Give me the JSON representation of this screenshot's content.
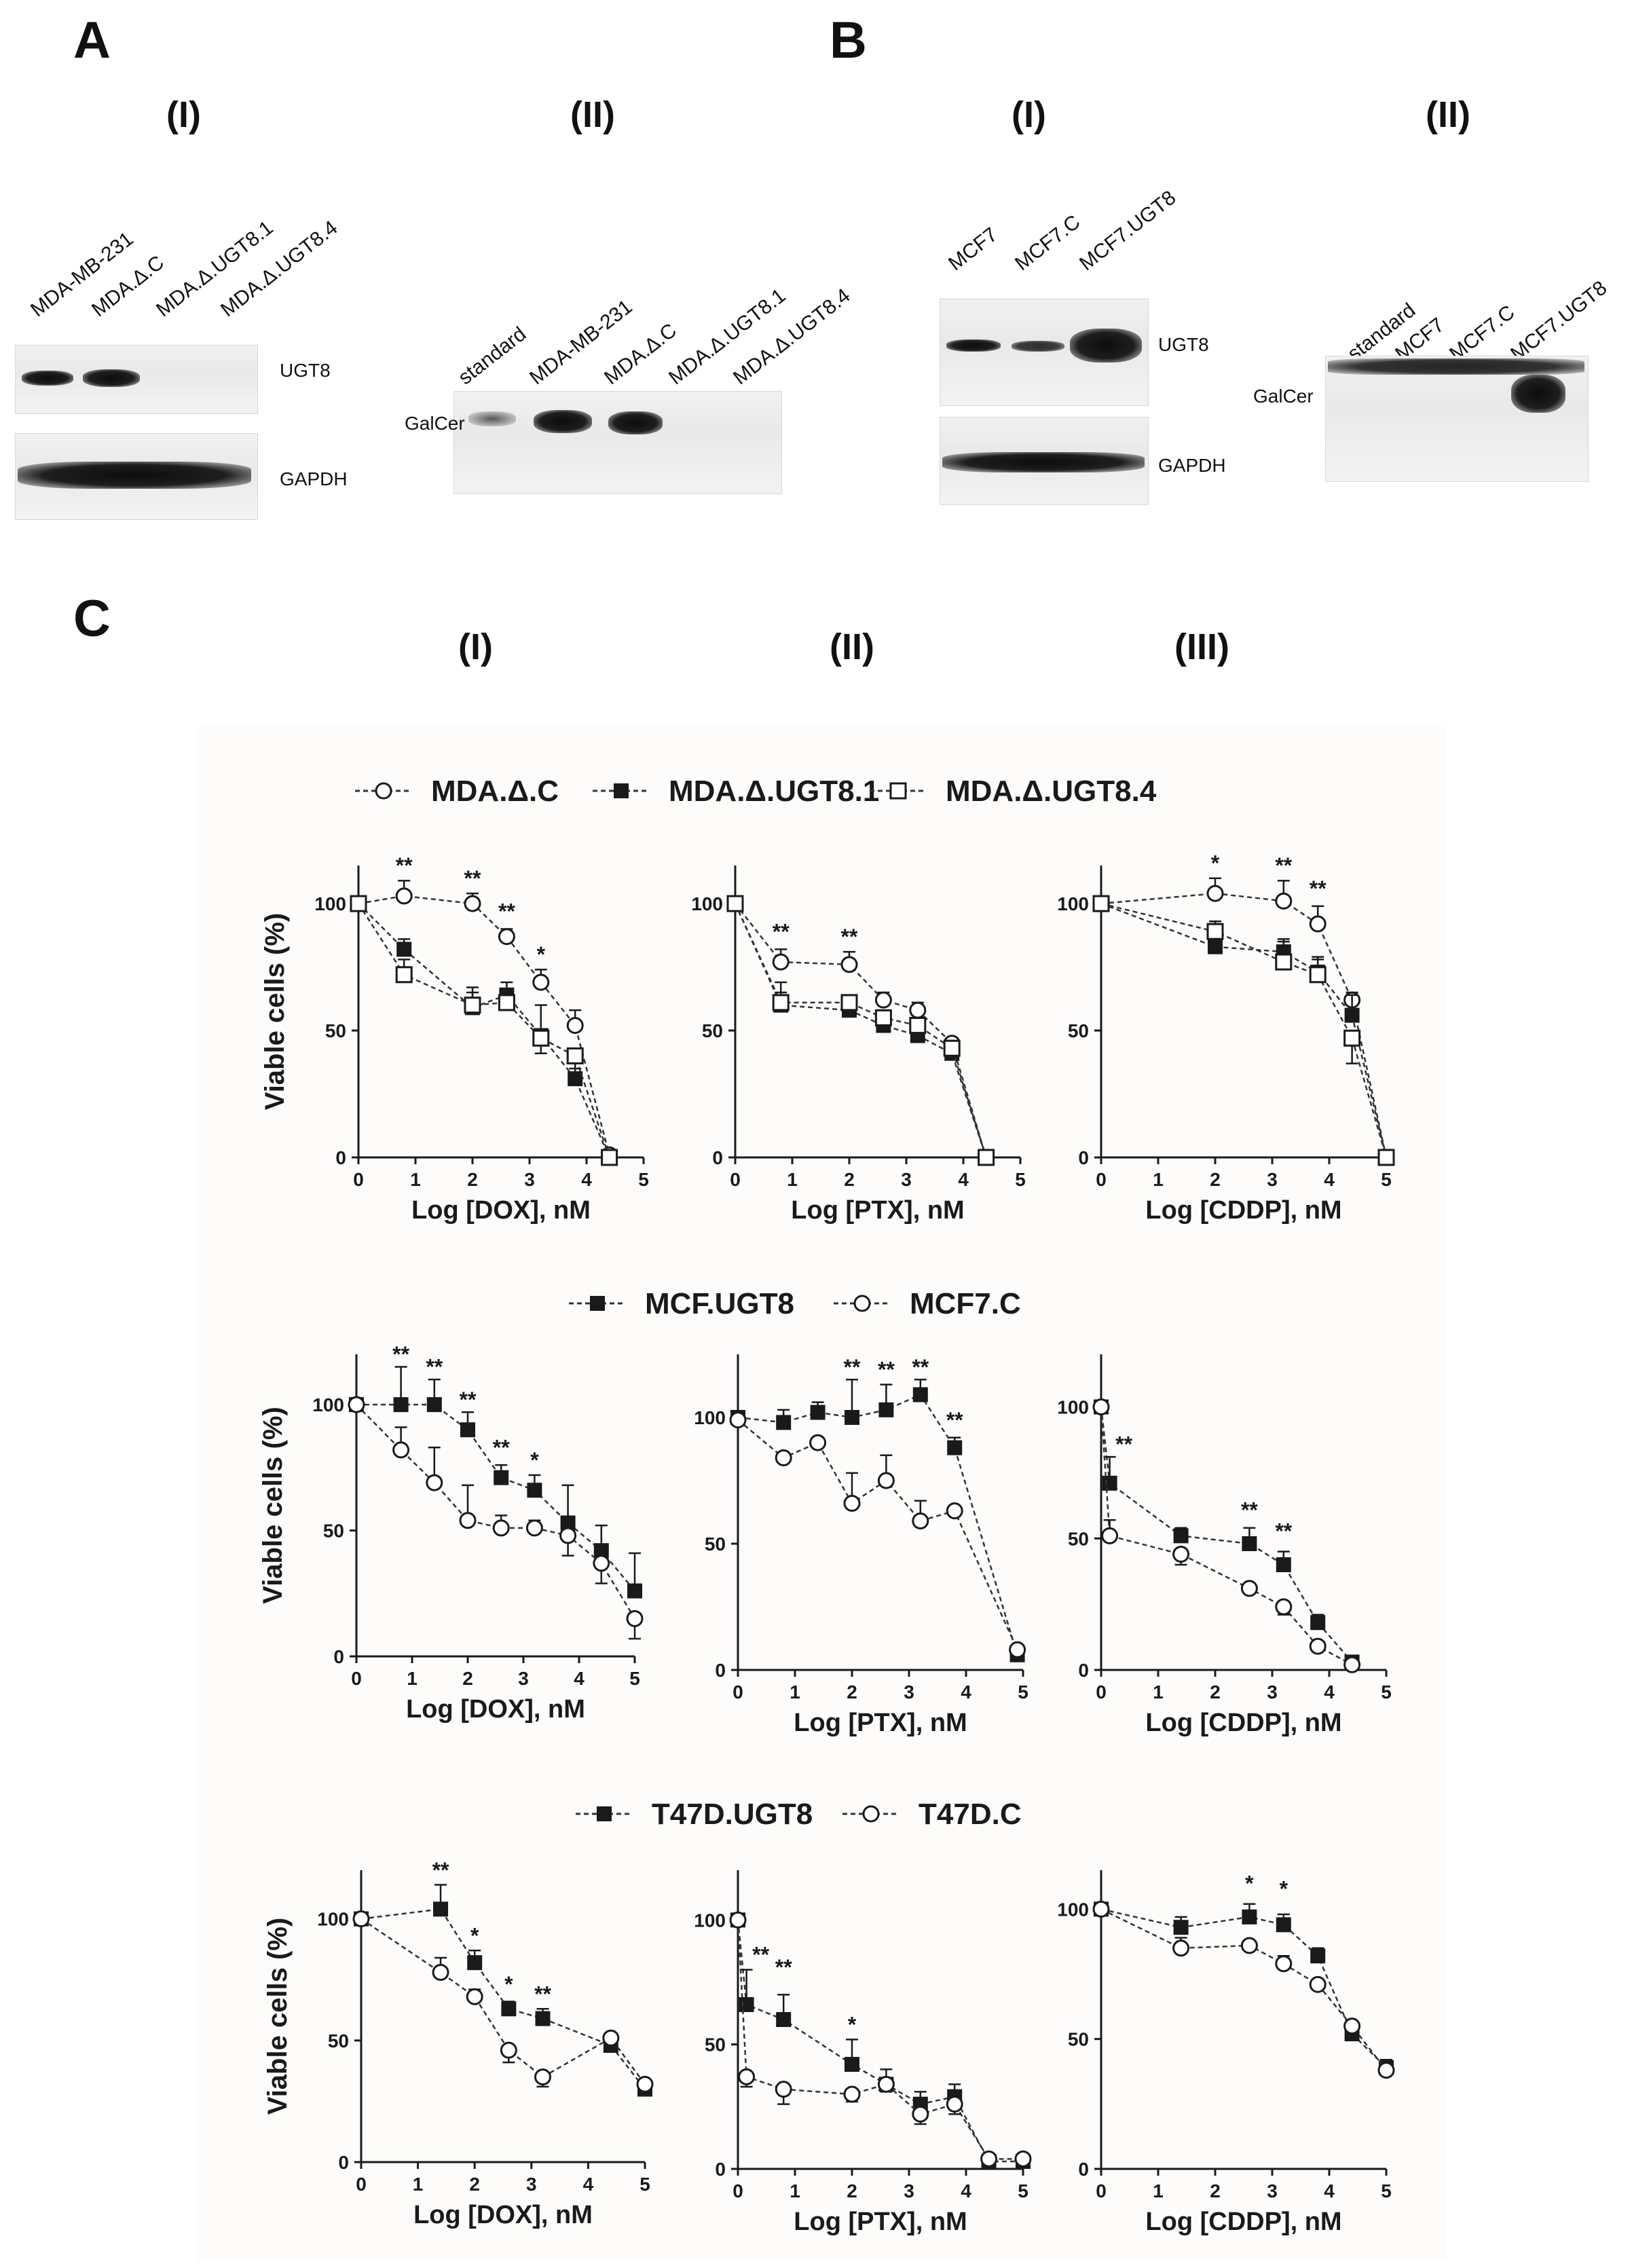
{
  "panel_labels": {
    "A": "A",
    "B": "B",
    "C": "C"
  },
  "sublabels": {
    "A_I": "(I)",
    "A_II": "(II)",
    "B_I": "(I)",
    "B_II": "(II)",
    "C_I": "(I)",
    "C_II": "(II)",
    "C_III": "(III)"
  },
  "blots": {
    "A_I": {
      "lanes": [
        "MDA-MB-231",
        "MDA.Δ.C",
        "MDA.Δ.UGT8.1",
        "MDA.Δ.UGT8.4"
      ],
      "top_label": "UGT8",
      "bottom_label": "GAPDH"
    },
    "A_II": {
      "lanes": [
        "standard",
        "MDA-MB-231",
        "MDA.Δ.C",
        "MDA.Δ.UGT8.1",
        "MDA.Δ.UGT8.4"
      ],
      "label": "GalCer"
    },
    "B_I": {
      "lanes": [
        "MCF7",
        "MCF7.C",
        "MCF7.UGT8"
      ],
      "top_label": "UGT8",
      "bottom_label": "GAPDH"
    },
    "B_II": {
      "lanes": [
        "standard",
        "MCF7",
        "MCF7.C",
        "MCF7.UGT8"
      ],
      "label": "GalCer"
    }
  },
  "legends": [
    {
      "items": [
        {
          "label": "MDA.Δ.C",
          "marker": "open-circle"
        },
        {
          "label": "MDA.Δ.UGT8.1",
          "marker": "filled-square"
        },
        {
          "label": "MDA.Δ.UGT8.4",
          "marker": "open-square"
        }
      ]
    },
    {
      "items": [
        {
          "label": "MCF.UGT8",
          "marker": "filled-square"
        },
        {
          "label": "MCF7.C",
          "marker": "open-circle"
        }
      ]
    },
    {
      "items": [
        {
          "label": "T47D.UGT8",
          "marker": "filled-square"
        },
        {
          "label": "T47D.C",
          "marker": "open-circle"
        }
      ]
    }
  ],
  "chart_data": [
    {
      "type": "line",
      "ylabel": "Viable cells (%)",
      "xlabel": "Log [DOX], nM",
      "xlim": [
        0,
        5
      ],
      "ylim": [
        0,
        115
      ],
      "xticks": [
        0,
        1,
        2,
        3,
        4,
        5
      ],
      "yticks": [
        0,
        50,
        100
      ],
      "series": [
        {
          "name": "MDA.Δ.C",
          "marker": "open-circle",
          "x": [
            0,
            0.8,
            2,
            2.6,
            3.2,
            3.8,
            4.4
          ],
          "y": [
            100,
            103,
            100,
            87,
            69,
            52,
            1
          ],
          "err": [
            0,
            6,
            4,
            3,
            5,
            6,
            2
          ]
        },
        {
          "name": "MDA.Δ.UGT8.1",
          "marker": "filled-square",
          "x": [
            0,
            0.8,
            2,
            2.6,
            3.2,
            3.8,
            4.4
          ],
          "y": [
            100,
            82,
            59,
            64,
            48,
            31,
            0
          ],
          "err": [
            0,
            4,
            8,
            5,
            12,
            9,
            2
          ]
        },
        {
          "name": "MDA.Δ.UGT8.4",
          "marker": "open-square",
          "x": [
            0,
            0.8,
            2,
            2.6,
            3.2,
            3.8,
            4.4
          ],
          "y": [
            100,
            72,
            60,
            61,
            47,
            40,
            0
          ],
          "err": [
            0,
            6,
            5,
            5,
            6,
            5,
            2
          ]
        }
      ],
      "annotations": [
        {
          "x": 0.8,
          "y": 112,
          "text": "**"
        },
        {
          "x": 2,
          "y": 107,
          "text": "**"
        },
        {
          "x": 2.6,
          "y": 94,
          "text": "**"
        },
        {
          "x": 3.2,
          "y": 77,
          "text": "*"
        }
      ]
    },
    {
      "type": "line",
      "ylabel": "",
      "xlabel": "Log [PTX], nM",
      "xlim": [
        0,
        5
      ],
      "ylim": [
        0,
        115
      ],
      "xticks": [
        0,
        1,
        2,
        3,
        4,
        5
      ],
      "yticks": [
        0,
        50,
        100
      ],
      "series": [
        {
          "name": "MDA.Δ.C",
          "marker": "open-circle",
          "x": [
            0,
            0.8,
            2,
            2.6,
            3.2,
            3.8,
            4.4
          ],
          "y": [
            100,
            77,
            76,
            62,
            58,
            45,
            0
          ],
          "err": [
            0,
            5,
            5,
            3,
            3,
            3,
            2
          ]
        },
        {
          "name": "MDA.Δ.UGT8.1",
          "marker": "filled-square",
          "x": [
            0,
            0.8,
            2,
            2.6,
            3.2,
            3.8,
            4.4
          ],
          "y": [
            100,
            60,
            58,
            52,
            48,
            41,
            0
          ],
          "err": [
            0,
            9,
            6,
            3,
            4,
            5,
            1
          ]
        },
        {
          "name": "MDA.Δ.UGT8.4",
          "marker": "open-square",
          "x": [
            0,
            0.8,
            2,
            2.6,
            3.2,
            3.8,
            4.4
          ],
          "y": [
            100,
            61,
            61,
            55,
            52,
            43,
            0
          ],
          "err": [
            0,
            4,
            3,
            3,
            3,
            3,
            1
          ]
        }
      ],
      "annotations": [
        {
          "x": 0.8,
          "y": 86,
          "text": "**"
        },
        {
          "x": 2,
          "y": 84,
          "text": "**"
        }
      ]
    },
    {
      "type": "line",
      "ylabel": "",
      "xlabel": "Log [CDDP], nM",
      "xlim": [
        0,
        5
      ],
      "ylim": [
        0,
        115
      ],
      "xticks": [
        0,
        1,
        2,
        3,
        4,
        5
      ],
      "yticks": [
        0,
        50,
        100
      ],
      "series": [
        {
          "name": "MDA.Δ.C",
          "marker": "open-circle",
          "x": [
            0,
            2,
            3.2,
            3.8,
            4.4,
            5
          ],
          "y": [
            100,
            104,
            101,
            92,
            62,
            0
          ],
          "err": [
            0,
            6,
            8,
            7,
            3,
            1
          ]
        },
        {
          "name": "MDA.Δ.UGT8.1",
          "marker": "filled-square",
          "x": [
            0,
            2,
            3.2,
            3.8,
            4.4,
            5
          ],
          "y": [
            100,
            83,
            81,
            73,
            56,
            0
          ],
          "err": [
            0,
            5,
            5,
            6,
            8,
            1
          ]
        },
        {
          "name": "MDA.Δ.UGT8.4",
          "marker": "open-square",
          "x": [
            0,
            2,
            3.2,
            3.8,
            4.4,
            5
          ],
          "y": [
            100,
            89,
            77,
            72,
            47,
            0
          ],
          "err": [
            0,
            4,
            8,
            6,
            10,
            1
          ]
        }
      ],
      "annotations": [
        {
          "x": 2,
          "y": 113,
          "text": "*"
        },
        {
          "x": 3.2,
          "y": 112,
          "text": "**"
        },
        {
          "x": 3.8,
          "y": 103,
          "text": "**"
        }
      ]
    },
    {
      "type": "line",
      "ylabel": "Viable cells (%)",
      "xlabel": "Log [DOX], nM",
      "xlim": [
        0,
        5
      ],
      "ylim": [
        0,
        120
      ],
      "xticks": [
        0,
        1,
        2,
        3,
        4,
        5
      ],
      "yticks": [
        0,
        50,
        100
      ],
      "series": [
        {
          "name": "MCF.UGT8",
          "marker": "filled-square",
          "x": [
            0,
            0.8,
            1.4,
            2,
            2.6,
            3.2,
            3.8,
            4.4,
            5
          ],
          "y": [
            100,
            100,
            100,
            90,
            71,
            66,
            53,
            42,
            26
          ],
          "err": [
            0,
            15,
            10,
            7,
            5,
            6,
            15,
            10,
            15
          ]
        },
        {
          "name": "MCF7.C",
          "marker": "open-circle",
          "x": [
            0,
            0.8,
            1.4,
            2,
            2.6,
            3.2,
            3.8,
            4.4,
            5
          ],
          "y": [
            100,
            82,
            69,
            54,
            51,
            51,
            48,
            37,
            15
          ],
          "err": [
            0,
            9,
            14,
            14,
            5,
            3,
            8,
            8,
            8
          ]
        }
      ],
      "annotations": [
        {
          "x": 0.8,
          "y": 117,
          "text": "**"
        },
        {
          "x": 1.4,
          "y": 112,
          "text": "**"
        },
        {
          "x": 2,
          "y": 99,
          "text": "**"
        },
        {
          "x": 2.6,
          "y": 80,
          "text": "**"
        },
        {
          "x": 3.2,
          "y": 75,
          "text": "*"
        }
      ]
    },
    {
      "type": "line",
      "ylabel": "",
      "xlabel": "Log [PTX], nM",
      "xlim": [
        0,
        5
      ],
      "ylim": [
        0,
        125
      ],
      "xticks": [
        0,
        1,
        2,
        3,
        4,
        5
      ],
      "yticks": [
        0,
        50,
        100
      ],
      "series": [
        {
          "name": "MCF.UGT8",
          "marker": "filled-square",
          "x": [
            0,
            0.8,
            1.4,
            2,
            2.6,
            3.2,
            3.8,
            4.9
          ],
          "y": [
            100,
            98,
            102,
            100,
            103,
            109,
            88,
            6
          ],
          "err": [
            0,
            5,
            4,
            15,
            10,
            6,
            4,
            2
          ]
        },
        {
          "name": "MCF7.C",
          "marker": "open-circle",
          "x": [
            0,
            0.8,
            1.4,
            2,
            2.6,
            3.2,
            3.8,
            4.9
          ],
          "y": [
            99,
            84,
            90,
            66,
            75,
            59,
            63,
            8
          ],
          "err": [
            0,
            2,
            2,
            12,
            10,
            8,
            2,
            1
          ]
        }
      ],
      "annotations": [
        {
          "x": 2,
          "y": 117,
          "text": "**"
        },
        {
          "x": 2.6,
          "y": 116,
          "text": "**"
        },
        {
          "x": 3.2,
          "y": 117,
          "text": "**"
        },
        {
          "x": 3.8,
          "y": 96,
          "text": "**"
        }
      ]
    },
    {
      "type": "line",
      "ylabel": "",
      "xlabel": "Log [CDDP], nM",
      "xlim": [
        0,
        5
      ],
      "ylim": [
        0,
        120
      ],
      "xticks": [
        0,
        1,
        2,
        3,
        4,
        5
      ],
      "yticks": [
        0,
        50,
        100
      ],
      "series": [
        {
          "name": "MCF.UGT8",
          "marker": "filled-square",
          "x": [
            0,
            0.15,
            1.4,
            2.6,
            3.2,
            3.8,
            4.4
          ],
          "y": [
            100,
            71,
            51,
            48,
            40,
            18,
            3
          ],
          "err": [
            0,
            10,
            3,
            6,
            5,
            3,
            1
          ]
        },
        {
          "name": "MCF7.C",
          "marker": "open-circle",
          "x": [
            0,
            0.15,
            1.4,
            2.6,
            3.2,
            3.8,
            4.4
          ],
          "y": [
            100,
            51,
            44,
            31,
            24,
            9,
            2
          ],
          "err": [
            0,
            6,
            4,
            2,
            3,
            2,
            1
          ]
        }
      ],
      "annotations": [
        {
          "x": 0.4,
          "y": 83,
          "text": "**"
        },
        {
          "x": 2.6,
          "y": 58,
          "text": "**"
        },
        {
          "x": 3.2,
          "y": 50,
          "text": "**"
        }
      ]
    },
    {
      "type": "line",
      "ylabel": "Viable cells (%)",
      "xlabel": "Log [DOX], nM",
      "xlim": [
        0,
        5
      ],
      "ylim": [
        0,
        120
      ],
      "xticks": [
        0,
        1,
        2,
        3,
        4,
        5
      ],
      "yticks": [
        0,
        50,
        100
      ],
      "series": [
        {
          "name": "T47D.UGT8",
          "marker": "filled-square",
          "x": [
            0,
            1.4,
            2,
            2.6,
            3.2,
            4.4,
            5
          ],
          "y": [
            100,
            104,
            82,
            63,
            59,
            48,
            30
          ],
          "err": [
            0,
            10,
            5,
            3,
            4,
            3,
            2
          ]
        },
        {
          "name": "T47D.C",
          "marker": "open-circle",
          "x": [
            0,
            1.4,
            2,
            2.6,
            3.2,
            4.4,
            5
          ],
          "y": [
            100,
            78,
            68,
            46,
            35,
            51,
            32
          ],
          "err": [
            0,
            6,
            3,
            5,
            4,
            2,
            2
          ]
        }
      ],
      "annotations": [
        {
          "x": 1.4,
          "y": 117,
          "text": "**"
        },
        {
          "x": 2,
          "y": 90,
          "text": "*"
        },
        {
          "x": 2.6,
          "y": 70,
          "text": "*"
        },
        {
          "x": 3.2,
          "y": 66,
          "text": "**"
        }
      ]
    },
    {
      "type": "line",
      "ylabel": "",
      "xlabel": "Log [PTX], nM",
      "xlim": [
        0,
        5
      ],
      "ylim": [
        0,
        120
      ],
      "xticks": [
        0,
        1,
        2,
        3,
        4,
        5
      ],
      "yticks": [
        0,
        50,
        100
      ],
      "series": [
        {
          "name": "T47D.UGT8",
          "marker": "filled-square",
          "x": [
            0,
            0.15,
            0.8,
            2,
            2.6,
            3.2,
            3.8,
            4.4,
            5
          ],
          "y": [
            100,
            66,
            60,
            42,
            34,
            26,
            29,
            3,
            3
          ],
          "err": [
            0,
            14,
            10,
            10,
            6,
            5,
            5,
            1,
            1
          ]
        },
        {
          "name": "T47D.C",
          "marker": "open-circle",
          "x": [
            0,
            0.15,
            0.8,
            2,
            2.6,
            3.2,
            3.8,
            4.4,
            5
          ],
          "y": [
            100,
            37,
            32,
            30,
            34,
            22,
            26,
            4,
            4
          ],
          "err": [
            0,
            4,
            6,
            3,
            3,
            4,
            4,
            1,
            1
          ]
        }
      ],
      "annotations": [
        {
          "x": 0.4,
          "y": 83,
          "text": "**"
        },
        {
          "x": 0.8,
          "y": 78,
          "text": "**"
        },
        {
          "x": 2,
          "y": 55,
          "text": "*"
        }
      ]
    },
    {
      "type": "line",
      "ylabel": "",
      "xlabel": "Log [CDDP], nM",
      "xlim": [
        0,
        5
      ],
      "ylim": [
        0,
        115
      ],
      "xticks": [
        0,
        1,
        2,
        3,
        4,
        5
      ],
      "yticks": [
        0,
        50,
        100
      ],
      "series": [
        {
          "name": "T47D.UGT8",
          "marker": "filled-square",
          "x": [
            0,
            1.4,
            2.6,
            3.2,
            3.8,
            4.4,
            5
          ],
          "y": [
            100,
            93,
            97,
            94,
            82,
            52,
            39
          ],
          "err": [
            0,
            4,
            5,
            4,
            3,
            2,
            3
          ]
        },
        {
          "name": "T47D.C",
          "marker": "open-circle",
          "x": [
            0,
            1.4,
            2.6,
            3.2,
            3.8,
            4.4,
            5
          ],
          "y": [
            100,
            85,
            86,
            79,
            71,
            55,
            38
          ],
          "err": [
            0,
            4,
            2,
            3,
            2,
            2,
            2
          ]
        }
      ],
      "annotations": [
        {
          "x": 2.6,
          "y": 107,
          "text": "*"
        },
        {
          "x": 3.2,
          "y": 105,
          "text": "*"
        }
      ]
    }
  ]
}
